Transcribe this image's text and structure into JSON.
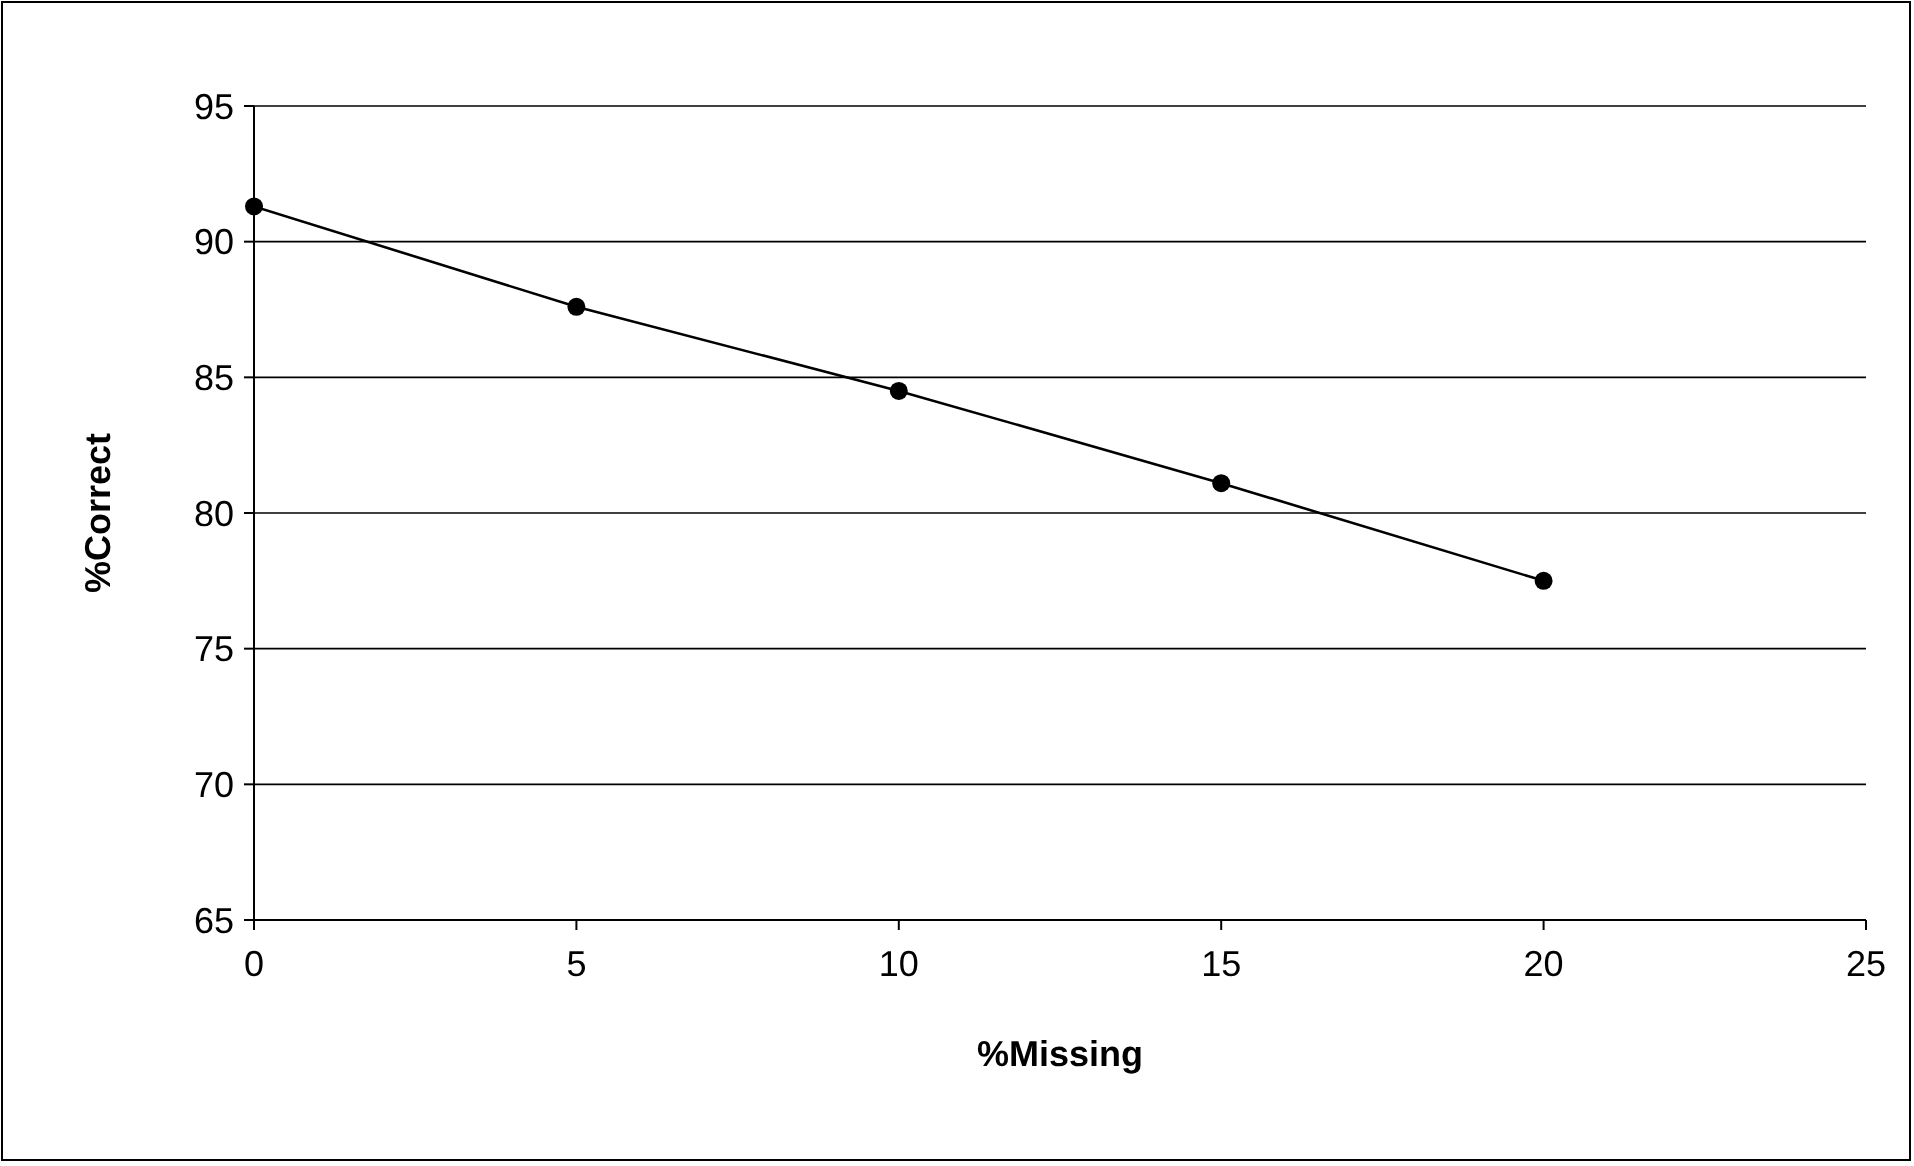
{
  "chart_data": {
    "type": "line",
    "xlabel": "%Missing",
    "ylabel": "%Correct",
    "x": [
      0,
      5,
      10,
      15,
      20
    ],
    "series": [
      {
        "color": "#000000",
        "values": [
          91.3,
          87.6,
          84.5,
          81.1,
          77.5
        ]
      }
    ],
    "xlim": [
      0,
      25
    ],
    "xticks": [
      0,
      5,
      10,
      15,
      20,
      25
    ],
    "ylim": [
      65,
      95
    ],
    "yticks": [
      65,
      70,
      75,
      80,
      85,
      90,
      95
    ],
    "grid": "y",
    "marker": "circle"
  }
}
